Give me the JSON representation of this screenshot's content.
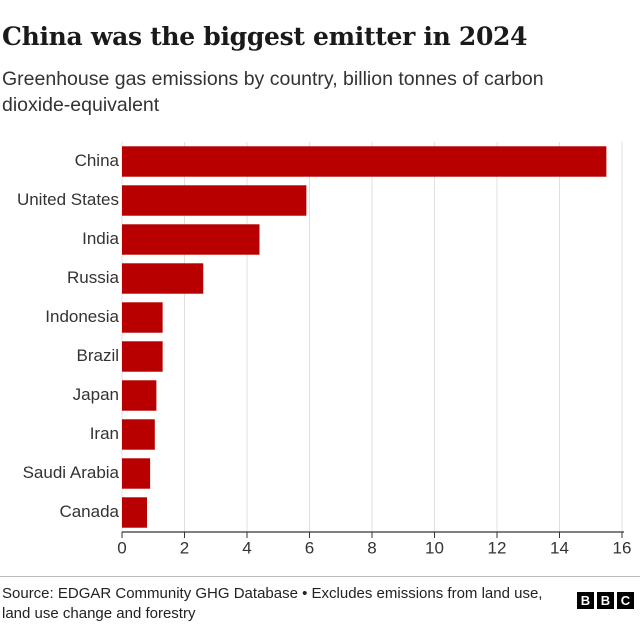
{
  "chart_data": {
    "type": "bar",
    "orientation": "horizontal",
    "title": "China was the biggest emitter in 2024",
    "subtitle": "Greenhouse gas emissions by country, billion tonnes of carbon dioxide-equivalent",
    "categories": [
      "China",
      "United States",
      "India",
      "Russia",
      "Indonesia",
      "Brazil",
      "Japan",
      "Iran",
      "Saudi Arabia",
      "Canada"
    ],
    "values": [
      15.5,
      5.9,
      4.4,
      2.6,
      1.3,
      1.3,
      1.1,
      1.05,
      0.9,
      0.8
    ],
    "color": "#b80000",
    "xlim": [
      0,
      16
    ],
    "xticks": [
      0,
      2,
      4,
      6,
      8,
      10,
      12,
      14,
      16
    ],
    "grid": true
  },
  "footer": {
    "source": "Source: EDGAR Community GHG Database • Excludes emissions from land use, land use change and forestry",
    "logo": [
      "B",
      "B",
      "C"
    ]
  }
}
